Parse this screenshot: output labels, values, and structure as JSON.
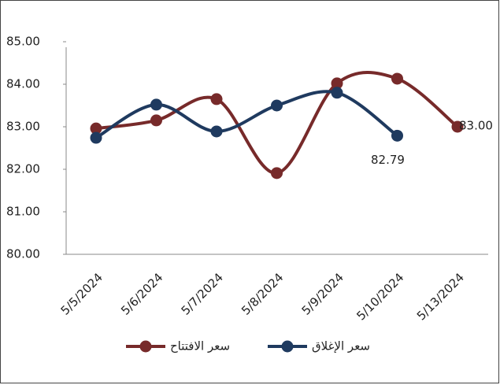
{
  "chart_data": {
    "type": "line",
    "categories": [
      "5/5/2024",
      "5/6/2024",
      "5/7/2024",
      "5/8/2024",
      "5/9/2024",
      "5/10/2024",
      "5/13/2024"
    ],
    "series": [
      {
        "name": "سعر الافتتاح",
        "color": "#772a2a",
        "values": [
          82.96,
          83.15,
          83.65,
          81.91,
          84.02,
          84.13,
          83.0
        ],
        "value_labels": [
          null,
          null,
          null,
          null,
          null,
          null,
          "83.00"
        ]
      },
      {
        "name": "سعر الإغلاق",
        "color": "#1f3a5f",
        "values": [
          82.74,
          83.52,
          82.89,
          83.5,
          83.8,
          82.79,
          null
        ],
        "value_labels": [
          null,
          null,
          null,
          null,
          null,
          "82.79",
          null
        ]
      }
    ],
    "ylim": [
      80,
      85
    ],
    "yticks": [
      {
        "value": 80,
        "label": "80.00"
      },
      {
        "value": 81,
        "label": "81.00"
      },
      {
        "value": 82,
        "label": "82.00"
      },
      {
        "value": 83,
        "label": "83.00"
      },
      {
        "value": 84,
        "label": "84.00"
      },
      {
        "value": 85,
        "label": "85.00"
      }
    ],
    "smooth": true
  }
}
